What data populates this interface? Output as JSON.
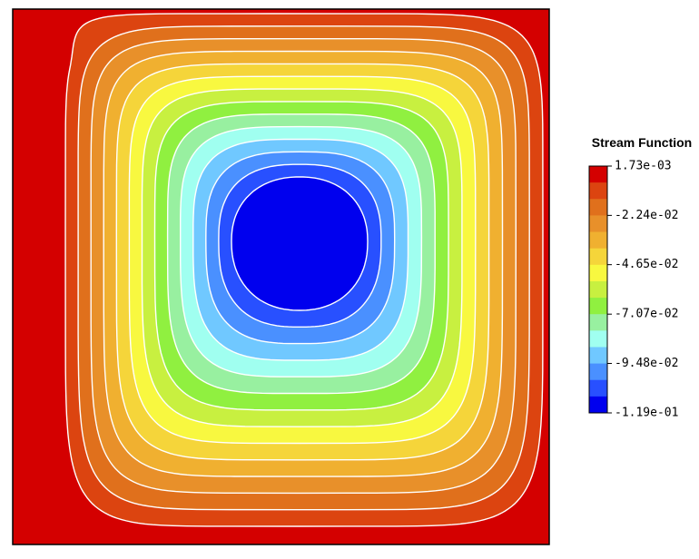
{
  "chart_data": {
    "type": "contour",
    "title": "Stream Function",
    "colors": [
      "#d40000",
      "#dc4410",
      "#e0701c",
      "#e8902a",
      "#f0b030",
      "#f5d53a",
      "#f8f840",
      "#c8f040",
      "#90f040",
      "#98f0a0",
      "#a0fff0",
      "#70c8ff",
      "#4a90ff",
      "#2850ff",
      "#0000ee"
    ],
    "clim": [
      -0.119,
      0.00173
    ],
    "cticks": [
      {
        "value": 0.00173,
        "label": "1.73e-03"
      },
      {
        "value": -0.0224,
        "label": "-2.24e-02"
      },
      {
        "value": -0.0465,
        "label": "-4.65e-02"
      },
      {
        "value": -0.0707,
        "label": "-7.07e-02"
      },
      {
        "value": -0.0948,
        "label": "-9.48e-02"
      },
      {
        "value": -0.119,
        "label": "-1.19e-01"
      }
    ]
  }
}
